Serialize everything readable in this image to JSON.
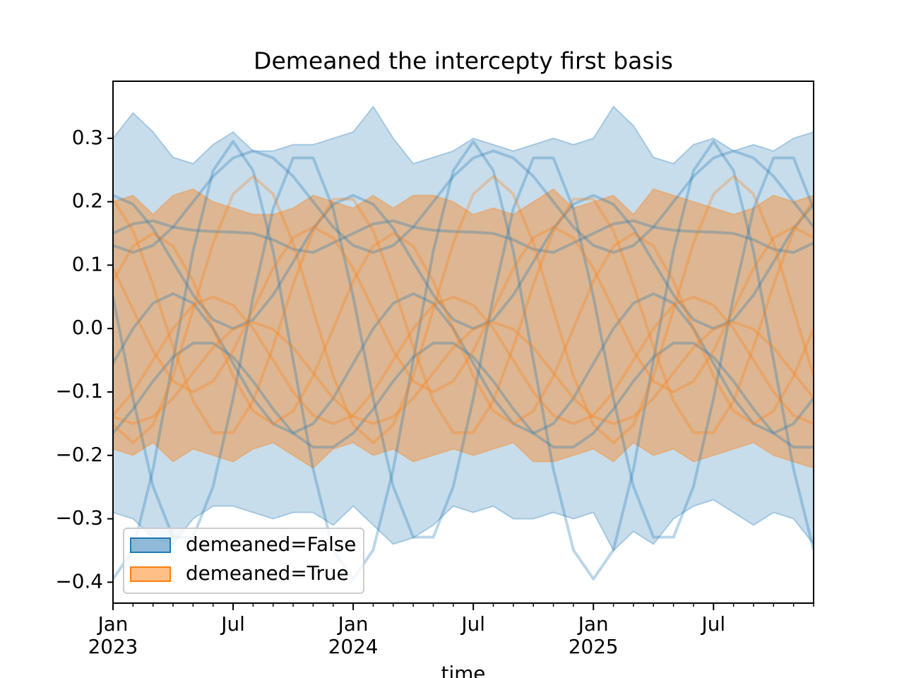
{
  "chart_data": {
    "type": "line",
    "title": "Demeaned the intercepty first basis",
    "xlabel": "time",
    "x": [
      "2023-01",
      "2023-02",
      "2023-03",
      "2023-04",
      "2023-05",
      "2023-06",
      "2023-07",
      "2023-08",
      "2023-09",
      "2023-10",
      "2023-11",
      "2023-12",
      "2024-01",
      "2024-02",
      "2024-03",
      "2024-04",
      "2024-05",
      "2024-06",
      "2024-07",
      "2024-08",
      "2024-09",
      "2024-10",
      "2024-11",
      "2024-12",
      "2025-01",
      "2025-02",
      "2025-03",
      "2025-04",
      "2025-05",
      "2025-06",
      "2025-07",
      "2025-08",
      "2025-09",
      "2025-10",
      "2025-11",
      "2025-12"
    ],
    "xlim": [
      "2023-01",
      "2025-12"
    ],
    "xticks": [
      {
        "value": "2023-01",
        "label": "Jan\n2023"
      },
      {
        "value": "2023-07",
        "label": "Jul"
      },
      {
        "value": "2024-01",
        "label": "Jan\n2024"
      },
      {
        "value": "2024-07",
        "label": "Jul"
      },
      {
        "value": "2025-01",
        "label": "Jan\n2025"
      },
      {
        "value": "2025-07",
        "label": "Jul"
      }
    ],
    "ylim": [
      -0.433,
      0.39
    ],
    "yticks": [
      {
        "value": -0.4,
        "label": "−0.4"
      },
      {
        "value": -0.3,
        "label": "−0.3"
      },
      {
        "value": -0.2,
        "label": "−0.2"
      },
      {
        "value": -0.1,
        "label": "−0.1"
      },
      {
        "value": 0.0,
        "label": "0.0"
      },
      0.1,
      0.2,
      0.3
    ],
    "legend": "lower left",
    "bands": [
      {
        "name": "demeaned=False",
        "color": "#1f77b4",
        "upper": [
          0.3,
          0.34,
          0.31,
          0.27,
          0.26,
          0.29,
          0.31,
          0.28,
          0.28,
          0.29,
          0.29,
          0.3,
          0.31,
          0.35,
          0.3,
          0.26,
          0.27,
          0.28,
          0.3,
          0.29,
          0.28,
          0.29,
          0.3,
          0.29,
          0.3,
          0.35,
          0.32,
          0.27,
          0.26,
          0.29,
          0.3,
          0.28,
          0.29,
          0.28,
          0.3,
          0.31
        ],
        "lower": [
          -0.29,
          -0.3,
          -0.33,
          -0.34,
          -0.3,
          -0.28,
          -0.28,
          -0.29,
          -0.3,
          -0.29,
          -0.29,
          -0.31,
          -0.28,
          -0.31,
          -0.34,
          -0.33,
          -0.31,
          -0.28,
          -0.29,
          -0.28,
          -0.3,
          -0.3,
          -0.29,
          -0.3,
          -0.29,
          -0.35,
          -0.32,
          -0.34,
          -0.3,
          -0.28,
          -0.27,
          -0.29,
          -0.31,
          -0.29,
          -0.3,
          -0.34
        ]
      },
      {
        "name": "demeaned=True",
        "color": "#ff7f0e",
        "upper": [
          0.2,
          0.21,
          0.18,
          0.21,
          0.22,
          0.2,
          0.19,
          0.18,
          0.18,
          0.19,
          0.21,
          0.2,
          0.19,
          0.21,
          0.19,
          0.21,
          0.21,
          0.2,
          0.18,
          0.19,
          0.18,
          0.2,
          0.22,
          0.19,
          0.2,
          0.21,
          0.18,
          0.22,
          0.21,
          0.2,
          0.19,
          0.18,
          0.19,
          0.21,
          0.2,
          0.21
        ],
        "lower": [
          -0.19,
          -0.2,
          -0.18,
          -0.21,
          -0.19,
          -0.2,
          -0.21,
          -0.19,
          -0.18,
          -0.2,
          -0.22,
          -0.19,
          -0.18,
          -0.2,
          -0.19,
          -0.21,
          -0.2,
          -0.19,
          -0.2,
          -0.19,
          -0.18,
          -0.21,
          -0.21,
          -0.2,
          -0.19,
          -0.21,
          -0.18,
          -0.2,
          -0.19,
          -0.21,
          -0.2,
          -0.19,
          -0.18,
          -0.2,
          -0.21,
          -0.22
        ]
      }
    ],
    "lines": [
      {
        "color": "#1f77b4",
        "values": [
          -0.395,
          -0.349,
          -0.222,
          -0.05,
          0.122,
          0.249,
          0.295,
          0.249,
          0.122,
          -0.05,
          -0.222,
          -0.349,
          -0.395,
          -0.349,
          -0.222,
          -0.05,
          0.122,
          0.249,
          0.295,
          0.249,
          0.122,
          -0.05,
          -0.222,
          -0.349,
          -0.395,
          -0.349,
          -0.222,
          -0.05,
          0.122,
          0.249,
          0.295,
          0.249,
          0.122,
          -0.05,
          -0.222,
          -0.349
        ]
      },
      {
        "color": "#1f77b4",
        "values": [
          0.05,
          -0.11,
          -0.249,
          -0.329,
          -0.329,
          -0.249,
          -0.11,
          0.05,
          0.189,
          0.269,
          0.269,
          0.189,
          0.05,
          -0.11,
          -0.249,
          -0.329,
          -0.329,
          -0.249,
          -0.11,
          0.05,
          0.189,
          0.269,
          0.269,
          0.189,
          0.05,
          -0.11,
          -0.249,
          -0.329,
          -0.329,
          -0.249,
          -0.11,
          0.05,
          0.189,
          0.269,
          0.269,
          0.189
        ]
      },
      {
        "color": "#1f77b4",
        "values": [
          0.131,
          0.12,
          0.131,
          0.16,
          0.2,
          0.24,
          0.269,
          0.28,
          0.269,
          0.24,
          0.2,
          0.16,
          0.131,
          0.12,
          0.131,
          0.16,
          0.2,
          0.24,
          0.269,
          0.28,
          0.269,
          0.24,
          0.2,
          0.16,
          0.131,
          0.12,
          0.131,
          0.16,
          0.2,
          0.24,
          0.269,
          0.28,
          0.269,
          0.24,
          0.2,
          0.16
        ]
      },
      {
        "color": "#1f77b4",
        "values": [
          0.15,
          0.165,
          0.17,
          0.16,
          0.155,
          0.153,
          0.152,
          0.15,
          0.14,
          0.125,
          0.12,
          0.135,
          0.15,
          0.165,
          0.17,
          0.16,
          0.155,
          0.153,
          0.152,
          0.15,
          0.14,
          0.125,
          0.12,
          0.135,
          0.15,
          0.165,
          0.17,
          0.16,
          0.155,
          0.153,
          0.152,
          0.15,
          0.14,
          0.125,
          0.12,
          0.135
        ]
      },
      {
        "color": "#1f77b4",
        "values": [
          -0.165,
          -0.127,
          -0.083,
          -0.045,
          -0.023,
          -0.023,
          -0.045,
          -0.083,
          -0.127,
          -0.165,
          -0.187,
          -0.187,
          -0.165,
          -0.127,
          -0.083,
          -0.045,
          -0.023,
          -0.023,
          -0.045,
          -0.083,
          -0.127,
          -0.165,
          -0.187,
          -0.187,
          -0.165,
          -0.127,
          -0.083,
          -0.045,
          -0.023,
          -0.023,
          -0.045,
          -0.083,
          -0.127,
          -0.165,
          -0.187,
          -0.187
        ]
      },
      {
        "color": "#1f77b4",
        "values": [
          -0.055,
          0.0,
          0.04,
          0.055,
          0.04,
          0.0,
          -0.055,
          -0.11,
          -0.15,
          -0.165,
          -0.15,
          -0.11,
          -0.055,
          0.0,
          0.04,
          0.055,
          0.04,
          0.0,
          -0.055,
          -0.11,
          -0.15,
          -0.165,
          -0.15,
          -0.11,
          -0.055,
          0.0,
          0.04,
          0.055,
          0.04,
          0.0,
          -0.055,
          -0.11,
          -0.15,
          -0.165,
          -0.15,
          -0.11
        ]
      },
      {
        "color": "#1f77b4",
        "values": [
          0.21,
          0.196,
          0.158,
          0.105,
          0.053,
          0.014,
          0.0,
          0.014,
          0.053,
          0.105,
          0.158,
          0.196,
          0.21,
          0.196,
          0.158,
          0.105,
          0.053,
          0.014,
          0.0,
          0.014,
          0.053,
          0.105,
          0.158,
          0.196,
          0.21,
          0.196,
          0.158,
          0.105,
          0.053,
          0.014,
          0.0,
          0.014,
          0.053,
          0.105,
          0.158,
          0.196
        ]
      },
      {
        "color": "#ff7f0e",
        "values": [
          0.075,
          0.13,
          0.15,
          0.13,
          0.075,
          0.0,
          -0.075,
          -0.13,
          -0.15,
          -0.13,
          -0.075,
          0.0,
          0.075,
          0.13,
          0.15,
          0.13,
          0.075,
          0.0,
          -0.075,
          -0.13,
          -0.15,
          -0.13,
          -0.075,
          0.0,
          0.075,
          0.13,
          0.15,
          0.13,
          0.075,
          0.0,
          -0.075,
          -0.13,
          -0.15,
          -0.13,
          -0.075,
          0.0
        ]
      },
      {
        "color": "#ff7f0e",
        "values": [
          -0.152,
          -0.18,
          -0.152,
          -0.075,
          0.03,
          0.135,
          0.212,
          0.24,
          0.212,
          0.135,
          0.03,
          -0.075,
          -0.152,
          -0.18,
          -0.152,
          -0.075,
          0.03,
          0.135,
          0.212,
          0.24,
          0.212,
          0.135,
          0.03,
          -0.075,
          -0.152,
          -0.18,
          -0.152,
          -0.075,
          0.03,
          0.135,
          0.212,
          0.24,
          0.212,
          0.135,
          0.03,
          -0.075
        ]
      },
      {
        "color": "#ff7f0e",
        "values": [
          -0.137,
          -0.1,
          -0.05,
          0.0,
          0.037,
          0.05,
          0.037,
          0.0,
          -0.05,
          -0.1,
          -0.137,
          -0.15,
          -0.137,
          -0.1,
          -0.05,
          0.0,
          0.037,
          0.05,
          0.037,
          0.0,
          -0.05,
          -0.1,
          -0.137,
          -0.15,
          -0.137,
          -0.1,
          -0.05,
          0.0,
          0.037,
          0.05,
          0.037,
          0.0,
          -0.05,
          -0.1,
          -0.137,
          -0.15
        ]
      },
      {
        "color": "#ff7f0e",
        "values": [
          0.095,
          0.03,
          -0.035,
          -0.083,
          -0.1,
          -0.083,
          -0.035,
          0.03,
          0.095,
          0.143,
          0.16,
          0.143,
          0.095,
          0.03,
          -0.035,
          -0.083,
          -0.1,
          -0.083,
          -0.035,
          0.03,
          0.095,
          0.143,
          0.16,
          0.143,
          0.095,
          0.03,
          -0.035,
          -0.083,
          -0.1,
          -0.083,
          -0.035,
          0.03,
          0.095,
          0.143,
          0.16,
          0.143
        ]
      },
      {
        "color": "#ff7f0e",
        "values": [
          -0.139,
          -0.15,
          -0.139,
          -0.11,
          -0.07,
          -0.03,
          -0.001,
          0.01,
          -0.001,
          -0.03,
          -0.07,
          -0.11,
          -0.139,
          -0.15,
          -0.139,
          -0.11,
          -0.07,
          -0.03,
          -0.001,
          0.01,
          -0.001,
          -0.03,
          -0.07,
          -0.11,
          -0.139,
          -0.15,
          -0.139,
          -0.11,
          -0.07,
          -0.03,
          -0.001,
          0.01,
          -0.001,
          -0.03,
          -0.07,
          -0.11
        ]
      },
      {
        "color": "#ff7f0e",
        "values": [
          0.204,
          0.154,
          0.069,
          -0.029,
          -0.114,
          -0.164,
          -0.164,
          -0.114,
          -0.029,
          0.069,
          0.154,
          0.204,
          0.204,
          0.154,
          0.069,
          -0.029,
          -0.114,
          -0.164,
          -0.164,
          -0.114,
          -0.029,
          0.069,
          0.154,
          0.204,
          0.204,
          0.154,
          0.069,
          -0.029,
          -0.114,
          -0.164,
          -0.164,
          -0.114,
          -0.029,
          0.069,
          0.154,
          0.204
        ]
      }
    ]
  }
}
